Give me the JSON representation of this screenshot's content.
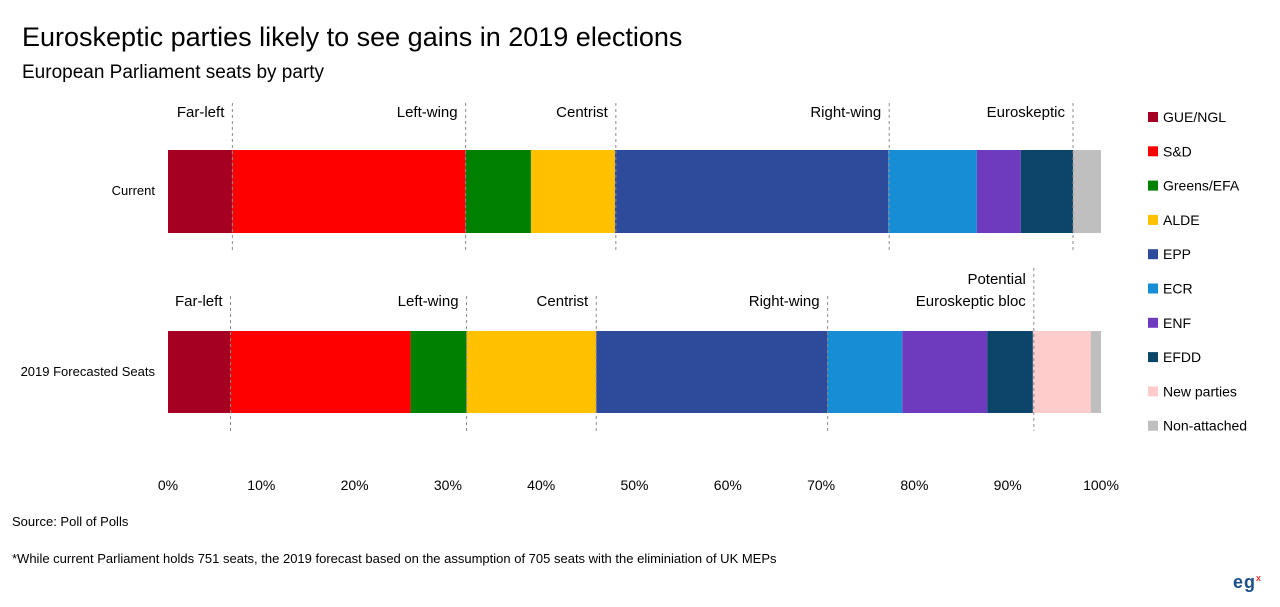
{
  "title": "Euroskeptic parties likely to see gains in 2019 elections",
  "subtitle": "European Parliament seats by party",
  "source": "Source: Poll of Polls",
  "footnote": "*While current Parliament holds 751 seats, the 2019 forecast based on the assumption of 705 seats with the eliminiation of UK MEPs",
  "logo": {
    "text": "eg",
    "sup": "x"
  },
  "chart_data": {
    "type": "bar",
    "orientation": "horizontal",
    "stacked": true,
    "normalized": true,
    "categories": [
      "Current",
      "2019 Forecasted Seats"
    ],
    "x_ticks": [
      "0%",
      "10%",
      "20%",
      "30%",
      "40%",
      "50%",
      "60%",
      "70%",
      "80%",
      "90%",
      "100%"
    ],
    "xlim": [
      0,
      100
    ],
    "legend_position": "right",
    "series": [
      {
        "name": "GUE/NGL",
        "color": "#A50021",
        "values": [
          6.9,
          6.7
        ]
      },
      {
        "name": "S&D",
        "color": "#FF0000",
        "values": [
          25.0,
          19.3
        ]
      },
      {
        "name": "Greens/EFA",
        "color": "#008000",
        "values": [
          7.0,
          6.0
        ]
      },
      {
        "name": "ALDE",
        "color": "#FFC000",
        "values": [
          9.0,
          13.9
        ]
      },
      {
        "name": "EPP",
        "color": "#2E4A9B",
        "values": [
          29.3,
          24.8
        ]
      },
      {
        "name": "ECR",
        "color": "#178DD6",
        "values": [
          9.5,
          8.0
        ]
      },
      {
        "name": "ENF",
        "color": "#6F3BBE",
        "values": [
          4.7,
          9.1
        ]
      },
      {
        "name": "EFDD",
        "color": "#0B466A",
        "values": [
          5.6,
          4.9
        ]
      },
      {
        "name": "New parties",
        "color": "#FFCCCC",
        "values": [
          0,
          6.2
        ]
      },
      {
        "name": "Non-attached",
        "color": "#BFBFBF",
        "values": [
          3.0,
          1.1
        ]
      }
    ],
    "bloc_annotations": [
      [
        {
          "label": "Far-left",
          "boundary": 6.9,
          "side": "left"
        },
        {
          "label": "Left-wing",
          "boundary": 31.9,
          "side": "left"
        },
        {
          "label": "Centrist",
          "boundary": 48.0,
          "side": "left"
        },
        {
          "label": "Right-wing",
          "boundary": 77.3,
          "side": "left"
        },
        {
          "label": "Euroskeptic",
          "boundary": 97.0,
          "side": "left"
        }
      ],
      [
        {
          "label": "Far-left",
          "boundary": 6.7,
          "side": "left"
        },
        {
          "label": "Left-wing",
          "boundary": 32.0,
          "side": "left"
        },
        {
          "label": "Centrist",
          "boundary": 45.9,
          "side": "left"
        },
        {
          "label": "Right-wing",
          "boundary": 70.7,
          "side": "left"
        },
        {
          "label": "Potential\nEuroskeptic bloc",
          "boundary": 92.8,
          "side": "left"
        }
      ]
    ]
  }
}
